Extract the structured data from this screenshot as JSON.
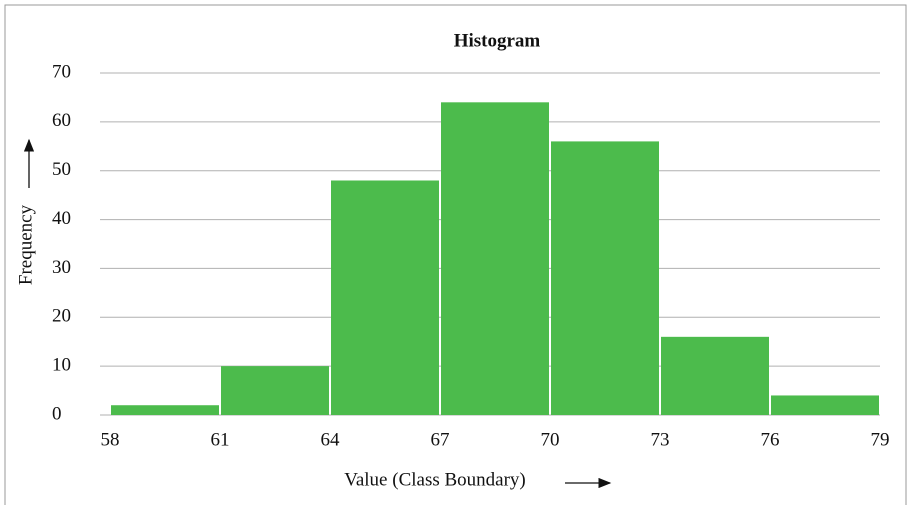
{
  "chart_data": {
    "type": "histogram",
    "title": "Histogram",
    "x_label": "Value (Class Boundary)",
    "y_label": "Frequency",
    "bins": [
      58,
      61,
      64,
      67,
      70,
      73,
      76,
      79
    ],
    "values": [
      2,
      10,
      48,
      64,
      56,
      16,
      4
    ],
    "color": "#4cbb4c",
    "xlim": [
      58,
      79
    ],
    "xticks": [
      58,
      61,
      64,
      67,
      70,
      73,
      76,
      79
    ],
    "ylim": [
      0,
      70
    ],
    "yticks": [
      0,
      10,
      20,
      30,
      40,
      50,
      60,
      70
    ],
    "grid": true
  }
}
